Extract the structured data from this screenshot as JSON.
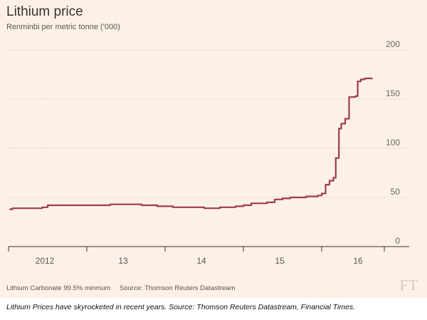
{
  "caption": "Lithium Prices have skyrocketed in recent years. Source: Thomson Reuters Datastream, Financial Times.",
  "brand": "FT",
  "colors": {
    "background": "#fdf1e6",
    "line": "#9e3a52",
    "grid": "#c8c1b9"
  },
  "chart_data": {
    "type": "line",
    "title": "Lithium price",
    "subtitle": "Renminbi per metric tonne ('000)",
    "footnote": "Lithium Carbonate 99.5% minmum",
    "source": "Source: Thomson Reuters Datastream",
    "xlabel": "",
    "ylabel": "",
    "xlim": [
      2011.5,
      2016.3
    ],
    "ylim": [
      0,
      200
    ],
    "y_ticks": [
      0,
      50,
      100,
      150,
      200
    ],
    "x_ticks": [
      {
        "value": 2012.0,
        "label": "2012"
      },
      {
        "value": 2013.0,
        "label": "13"
      },
      {
        "value": 2014.0,
        "label": "14"
      },
      {
        "value": 2015.0,
        "label": "15"
      },
      {
        "value": 2016.0,
        "label": "16"
      }
    ],
    "grid": "horizontal-dotted",
    "series": [
      {
        "values": [
          [
            2011.51,
            38
          ],
          [
            2011.55,
            39
          ],
          [
            2011.9,
            39
          ],
          [
            2011.93,
            40
          ],
          [
            2012.0,
            42
          ],
          [
            2012.3,
            42
          ],
          [
            2012.7,
            42
          ],
          [
            2012.8,
            43
          ],
          [
            2013.0,
            43
          ],
          [
            2013.2,
            42
          ],
          [
            2013.4,
            41
          ],
          [
            2013.6,
            40
          ],
          [
            2013.8,
            40
          ],
          [
            2014.0,
            39
          ],
          [
            2014.1,
            39
          ],
          [
            2014.2,
            40
          ],
          [
            2014.4,
            41
          ],
          [
            2014.5,
            42
          ],
          [
            2014.6,
            44
          ],
          [
            2014.8,
            45
          ],
          [
            2014.9,
            48
          ],
          [
            2015.0,
            49
          ],
          [
            2015.1,
            50
          ],
          [
            2015.3,
            51
          ],
          [
            2015.45,
            52
          ],
          [
            2015.5,
            54
          ],
          [
            2015.55,
            63
          ],
          [
            2015.6,
            67
          ],
          [
            2015.65,
            70
          ],
          [
            2015.68,
            90
          ],
          [
            2015.72,
            120
          ],
          [
            2015.75,
            125
          ],
          [
            2015.8,
            130
          ],
          [
            2015.85,
            152
          ],
          [
            2015.93,
            153
          ],
          [
            2015.96,
            168
          ],
          [
            2016.0,
            170
          ],
          [
            2016.05,
            171
          ],
          [
            2016.15,
            171
          ]
        ]
      }
    ]
  }
}
